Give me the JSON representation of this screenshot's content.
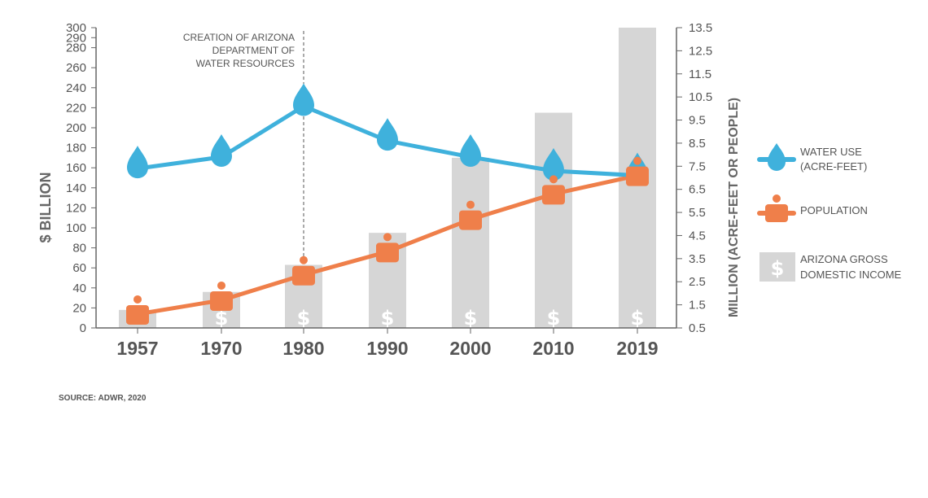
{
  "chart_data": {
    "type": "bar",
    "categories": [
      "1957",
      "1970",
      "1980",
      "1990",
      "2000",
      "2010",
      "2019"
    ],
    "series": [
      {
        "name": "ARIZONA GROSS DOMESTIC INCOME",
        "type": "bar",
        "axis": "left",
        "values": [
          18,
          36,
          63,
          95,
          170,
          215,
          300
        ]
      },
      {
        "name": "WATER USE (ACRE-FEET)",
        "type": "line",
        "axis": "right",
        "values": [
          7.4,
          7.9,
          10.1,
          8.6,
          7.9,
          7.3,
          7.1
        ]
      },
      {
        "name": "POPULATION",
        "type": "line",
        "axis": "right",
        "values": [
          1.1,
          1.7,
          2.8,
          3.8,
          5.2,
          6.3,
          7.1
        ]
      }
    ],
    "ylabel": "$ BILLION",
    "ylim": [
      0,
      300
    ],
    "yticks": [
      "0",
      "20",
      "40",
      "60",
      "80",
      "100",
      "120",
      "140",
      "160",
      "180",
      "200",
      "220",
      "240",
      "260",
      "280",
      "290",
      "300"
    ],
    "y2label": "MILLION (ACRE-FEET OR PEOPLE)",
    "y2lim": [
      0.5,
      13.5
    ],
    "y2ticks": [
      "0.5",
      "1.5",
      "2.5",
      "3.5",
      "4.5",
      "5.5",
      "6.5",
      "7.5",
      "8.5",
      "9.5",
      "10.5",
      "11.5",
      "12.5",
      "13.5"
    ],
    "annotation": {
      "text_lines": [
        "CREATION OF ARIZONA",
        "DEPARTMENT OF",
        "WATER RESOURCES"
      ],
      "at": "1980"
    },
    "legend_position": "right",
    "source": "SOURCE: ADWR, 2020",
    "colors": {
      "water": "#3fb1dc",
      "population": "#ef7f4a",
      "bars": "#d6d6d6",
      "axis": "#666666",
      "text": "#555555"
    },
    "icons": {
      "water": "water-drop-icon",
      "population": "person-icon",
      "income": "dollar-icon"
    }
  }
}
